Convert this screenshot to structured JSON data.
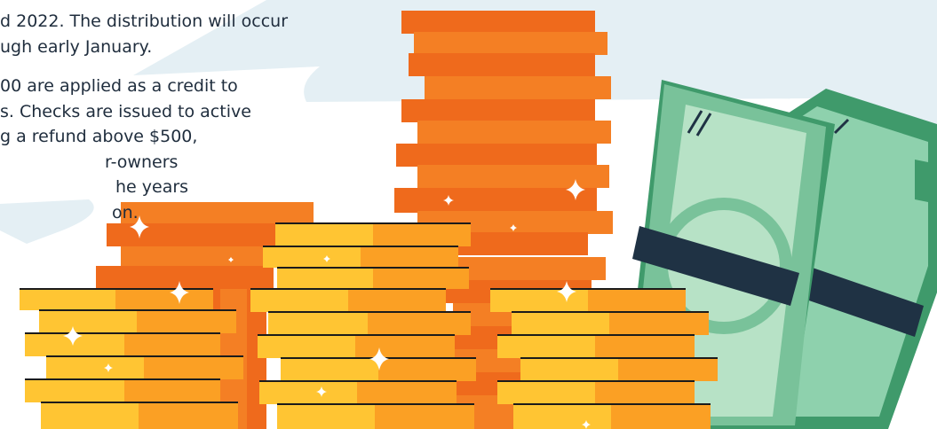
{
  "paragraphs": [
    {
      "lines": [
        "d 2022. The distribution will occur",
        "ugh early January."
      ]
    },
    {
      "lines": [
        "00 are applied as a credit to",
        "s. Checks are issued to active",
        "g a refund above $500,",
        "r-owners",
        "he years",
        "on."
      ]
    }
  ],
  "colors": {
    "text": "#1f2d3d",
    "cloud": "#e4eff4",
    "orange_dark": "#ef6a1c",
    "orange_light": "#f47f24",
    "gold_light": "#ffc533",
    "gold_dark": "#fba024",
    "cash_green": "#79c29a",
    "cash_dark_green": "#3f9a6b",
    "cash_band": "#1f3244"
  },
  "illustration": {
    "subject": "stacks-of-coins-and-banknote-bundles",
    "icons": [
      "sparkle-icon"
    ]
  }
}
